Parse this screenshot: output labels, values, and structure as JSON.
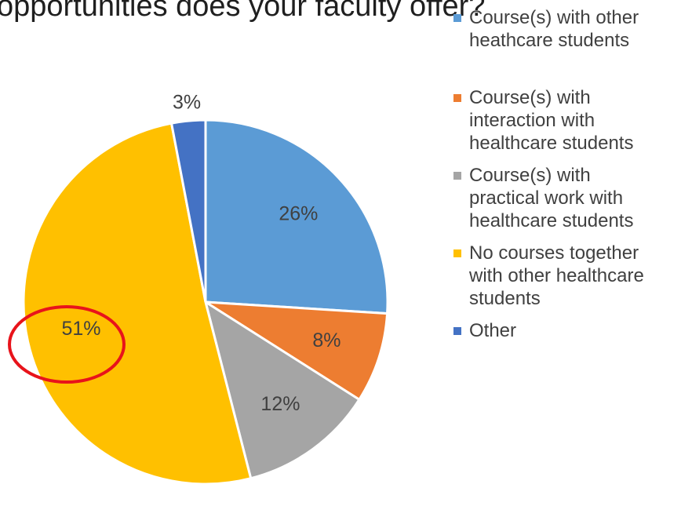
{
  "chart_data": {
    "type": "pie",
    "title": "opportunities does your faculty offer?",
    "categories": [
      "Course(s) with other heathcare students",
      "Course(s) with interaction with healthcare students",
      "Course(s) with practical work with healthcare students",
      "No courses together with other healthcare students",
      "Other"
    ],
    "values": [
      26,
      8,
      12,
      51,
      3
    ],
    "value_labels": [
      "26%",
      "8%",
      "12%",
      "51%",
      "3%"
    ],
    "colors": [
      "#5b9bd5",
      "#ed7d31",
      "#a5a5a5",
      "#ffc000",
      "#4472c4"
    ],
    "legend": "right"
  }
}
